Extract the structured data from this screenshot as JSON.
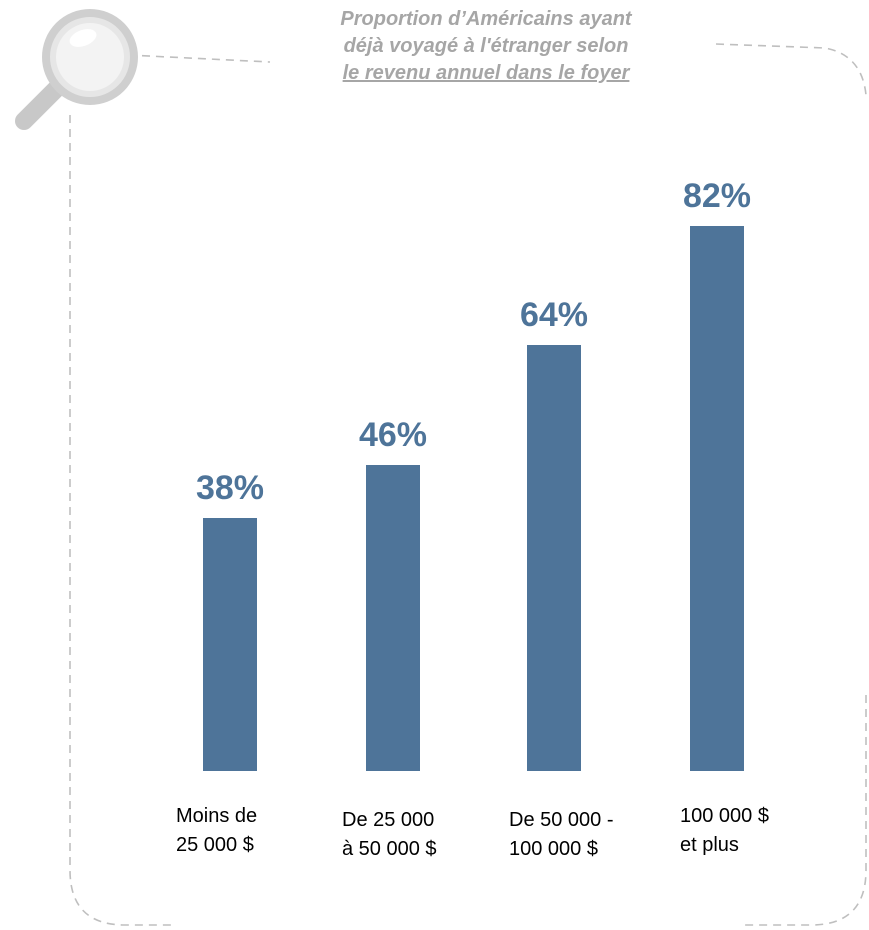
{
  "title": {
    "line1": "Proportion d’Américains ayant",
    "line2": "déjà voyagé à l'étranger selon",
    "line3": "le revenu annuel dans le foyer"
  },
  "colors": {
    "bar": "#4e7499",
    "value_label": "#4e7499",
    "title": "#a6a6a6",
    "frame": "#bfbfbf"
  },
  "icons": [
    "magnifier-icon"
  ],
  "chart_data": {
    "type": "bar",
    "title": "Proportion d’Américains ayant déjà voyagé à l'étranger selon le revenu annuel dans le foyer",
    "categories": [
      [
        "Moins de",
        "25 000 $"
      ],
      [
        "De 25 000",
        "à 50 000 $"
      ],
      [
        "De 50 000 -",
        "100 000 $"
      ],
      [
        "100 000 $",
        "et plus"
      ]
    ],
    "values": [
      38,
      46,
      64,
      82
    ],
    "value_labels": [
      "38%",
      "46%",
      "64%",
      "82%"
    ],
    "unit": "%",
    "ylim": [
      0,
      100
    ],
    "grid": false,
    "legend": "none",
    "xlabel": "",
    "ylabel": ""
  }
}
